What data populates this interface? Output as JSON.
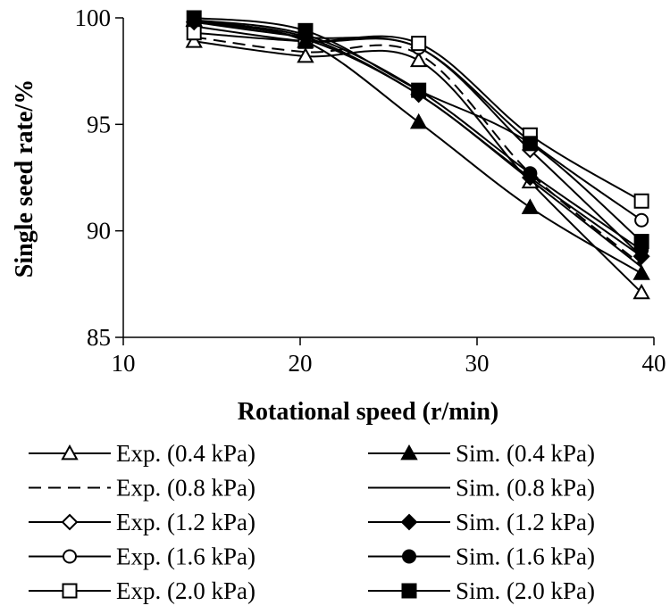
{
  "chart_data": {
    "type": "line",
    "title": "",
    "xlabel": "Rotational speed (r/min)",
    "ylabel": "Single seed rate/%",
    "xlim": [
      10,
      40
    ],
    "ylim": [
      85,
      100
    ],
    "xticks": [
      "10",
      "20",
      "30",
      "40"
    ],
    "yticks": [
      "85",
      "90",
      "95",
      "100"
    ],
    "x": [
      14,
      20.3,
      26.7,
      33,
      39.3
    ],
    "legend_position": "bottom",
    "series": [
      {
        "name": "Exp. (0.4 kPa)",
        "marker": "triangle-open",
        "dash": "solid",
        "values": [
          98.9,
          98.2,
          98.0,
          92.3,
          87.1
        ]
      },
      {
        "name": "Exp. (0.8 kPa)",
        "marker": "none",
        "dash": "dashed",
        "values": [
          99.1,
          98.4,
          98.3,
          92.7,
          88.4
        ]
      },
      {
        "name": "Exp. (1.2 kPa)",
        "marker": "diamond-open",
        "dash": "solid",
        "values": [
          99.6,
          98.9,
          98.6,
          93.8,
          88.8
        ]
      },
      {
        "name": "Exp. (1.6 kPa)",
        "marker": "circle-open",
        "dash": "solid",
        "values": [
          99.8,
          99.1,
          98.6,
          94.2,
          90.5
        ]
      },
      {
        "name": "Exp. (2.0 kPa)",
        "marker": "square-open",
        "dash": "solid",
        "values": [
          99.3,
          98.9,
          98.8,
          94.5,
          91.4
        ]
      },
      {
        "name": "Sim. (0.4 kPa)",
        "marker": "triangle-filled",
        "dash": "solid",
        "values": [
          99.9,
          98.9,
          95.1,
          91.1,
          88.0
        ]
      },
      {
        "name": "Sim. (0.8 kPa)",
        "marker": "none",
        "dash": "solid",
        "values": [
          99.8,
          99.0,
          96.4,
          92.4,
          88.3
        ]
      },
      {
        "name": "Sim. (1.2 kPa)",
        "marker": "diamond-filled",
        "dash": "solid",
        "values": [
          99.8,
          99.1,
          96.4,
          92.5,
          88.8
        ]
      },
      {
        "name": "Sim. (1.6 kPa)",
        "marker": "circle-filled",
        "dash": "solid",
        "values": [
          99.9,
          99.2,
          96.6,
          92.7,
          89.1
        ]
      },
      {
        "name": "Sim. (2.0 kPa)",
        "marker": "square-filled",
        "dash": "solid",
        "values": [
          100.0,
          99.4,
          96.6,
          94.1,
          89.5
        ]
      }
    ]
  }
}
